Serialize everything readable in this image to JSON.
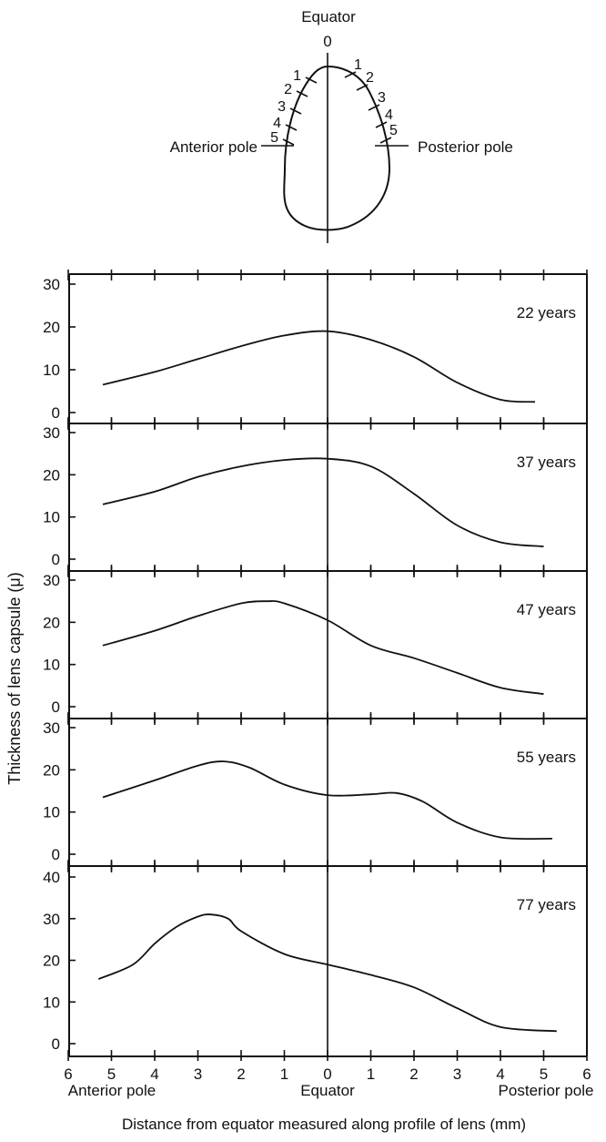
{
  "diagram": {
    "top_label": "Equator",
    "zero_label": "0",
    "left_label": "Anterior pole",
    "right_label": "Posterior pole",
    "left_marks": [
      "1",
      "2",
      "3",
      "4",
      "5"
    ],
    "right_marks": [
      "1",
      "2",
      "3",
      "4",
      "5"
    ]
  },
  "chart_data": [
    {
      "type": "line",
      "annotation": "22 years",
      "x": [
        -5.2,
        -4,
        -3,
        -2,
        -1,
        0,
        1,
        2,
        3,
        4,
        4.8
      ],
      "y": [
        6.5,
        9.5,
        12.5,
        15.5,
        18,
        19,
        17,
        13,
        7,
        3,
        2.5
      ],
      "yticks": [
        "0",
        "10",
        "20",
        "30"
      ],
      "ylim": [
        0,
        32
      ],
      "xlim": [
        -6,
        6
      ]
    },
    {
      "type": "line",
      "annotation": "37 years",
      "x": [
        -5.2,
        -4,
        -3,
        -2,
        -1,
        0,
        1,
        2,
        3,
        4,
        5
      ],
      "y": [
        13,
        16,
        19.5,
        22,
        23.5,
        23.8,
        22,
        15.5,
        8,
        4,
        3
      ],
      "yticks": [
        "0",
        "10",
        "20",
        "30"
      ],
      "ylim": [
        0,
        32
      ],
      "xlim": [
        -6,
        6
      ]
    },
    {
      "type": "line",
      "annotation": "47 years",
      "x": [
        -5.2,
        -4,
        -3,
        -2,
        -1.4,
        -1,
        0,
        1,
        2,
        3,
        4,
        5
      ],
      "y": [
        14.5,
        18,
        21.5,
        24.5,
        25,
        24.5,
        20.5,
        14.5,
        11.5,
        8,
        4.5,
        3
      ],
      "yticks": [
        "0",
        "10",
        "20",
        "30"
      ],
      "ylim": [
        0,
        32
      ],
      "xlim": [
        -6,
        6
      ]
    },
    {
      "type": "line",
      "annotation": "55 years",
      "x": [
        -5.2,
        -4,
        -3,
        -2.4,
        -1.8,
        -1,
        0,
        1,
        1.6,
        2.2,
        3,
        4,
        5.2
      ],
      "y": [
        13.5,
        17.5,
        21,
        22,
        20.5,
        16.5,
        14,
        14.2,
        14.5,
        12.5,
        7.5,
        4,
        3.7
      ],
      "yticks": [
        "0",
        "10",
        "20",
        "30"
      ],
      "ylim": [
        0,
        32
      ],
      "xlim": [
        -6,
        6
      ]
    },
    {
      "type": "line",
      "annotation": "77 years",
      "x": [
        -5.3,
        -4.5,
        -4,
        -3.5,
        -3,
        -2.7,
        -2.3,
        -2,
        -1,
        0,
        1,
        2,
        3,
        4,
        5.3
      ],
      "y": [
        15.5,
        19,
        24,
        28,
        30.5,
        31,
        30,
        27,
        21.5,
        19,
        16.5,
        13.5,
        8.5,
        4,
        3
      ],
      "yticks": [
        "0",
        "10",
        "20",
        "30",
        "40"
      ],
      "ylim": [
        0,
        42
      ],
      "xlim": [
        -6,
        6
      ],
      "xticks": [
        "6",
        "5",
        "4",
        "3",
        "2",
        "1",
        "0",
        "1",
        "2",
        "3",
        "4",
        "5",
        "6"
      ]
    }
  ],
  "x_axis": {
    "left_label": "Anterior pole",
    "center_label": "Equator",
    "right_label": "Posterior pole",
    "xlabel": "Distance from equator measured along profile of lens (mm)"
  },
  "ylabel": "Thickness of lens capsule (μ)"
}
